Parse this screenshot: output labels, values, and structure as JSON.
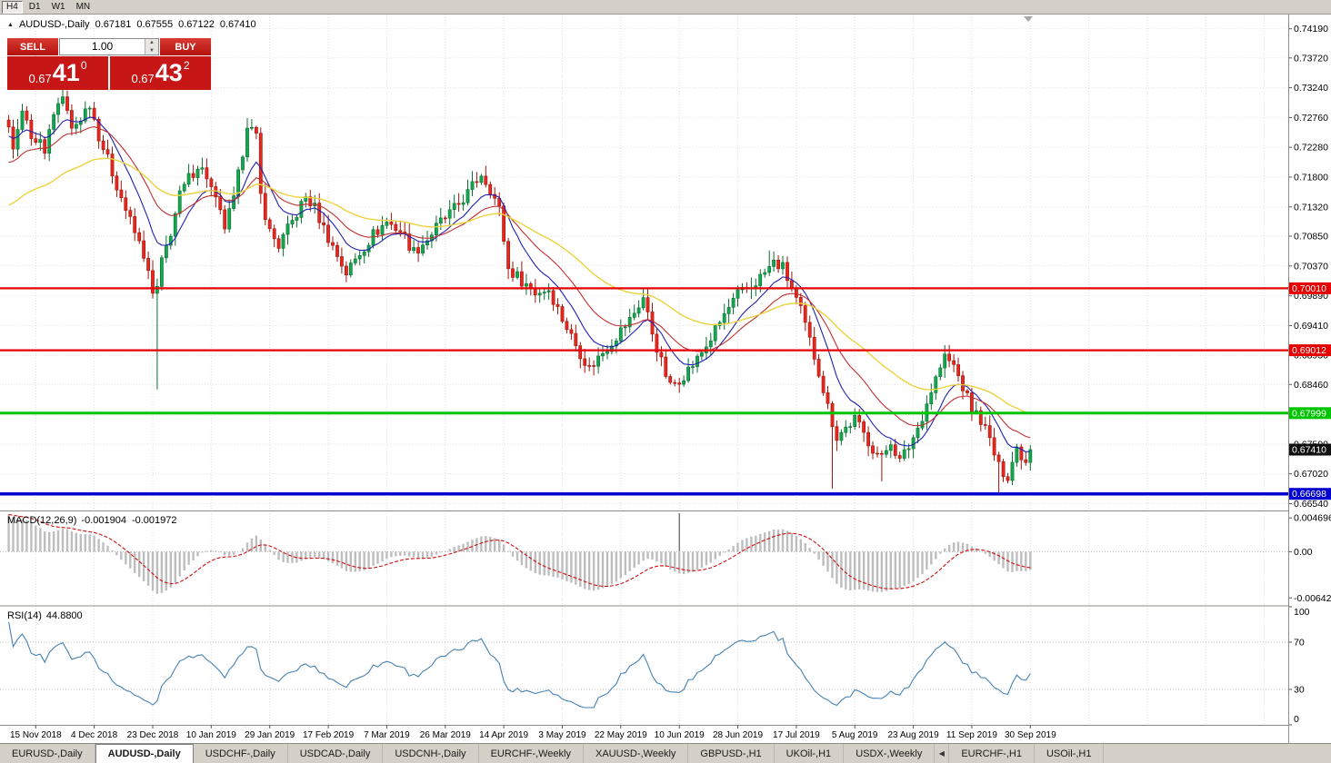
{
  "window": {
    "toolbar": {
      "timeframes": [
        "H4",
        "D1",
        "W1",
        "MN"
      ],
      "active": "H4"
    }
  },
  "symbol_info": {
    "collapse_glyph": "▲",
    "title": "AUDUSD-,Daily",
    "open": "0.67181",
    "high": "0.67555",
    "low": "0.67122",
    "close": "0.67410"
  },
  "trade_panel": {
    "sell_label": "SELL",
    "buy_label": "BUY",
    "volume": "1.00",
    "spin_up_glyph": "▲",
    "spin_down_glyph": "▼",
    "sell_price": {
      "prefix": "0.67",
      "pips": "41",
      "fraction": "0"
    },
    "buy_price": {
      "prefix": "0.67",
      "pips": "43",
      "fraction": "2"
    },
    "accent_color": "#c61616"
  },
  "price_axis": {
    "ticks": [
      "0.74190",
      "0.73720",
      "0.73240",
      "0.72760",
      "0.72280",
      "0.71800",
      "0.71320",
      "0.70850",
      "0.70370",
      "0.69890",
      "0.69410",
      "0.68930",
      "0.68460",
      "0.67980",
      "0.67500",
      "0.67020",
      "0.66540"
    ]
  },
  "hlines": [
    {
      "value": 0.7001,
      "label": "0.70010",
      "color": "#e60000",
      "width": 2.2
    },
    {
      "value": 0.69012,
      "label": "0.69012",
      "color": "#e60000",
      "width": 2.2
    },
    {
      "value": 0.67999,
      "label": "0.67999",
      "color": "#00c400",
      "width": 3
    },
    {
      "value": 0.66698,
      "label": "0.66698",
      "color": "#0000cf",
      "width": 3.5
    }
  ],
  "current_price": {
    "value": 0.6741,
    "label": "0.67410",
    "bg": "#101010"
  },
  "macd": {
    "label": "MACD(12,26,9)",
    "value_main": "-0.001904",
    "value_signal": "-0.001972",
    "ticks": [
      {
        "v": 0.004696,
        "label": "0.004696"
      },
      {
        "v": 0,
        "label": "0.00"
      },
      {
        "v": -0.006427,
        "label": "-0.006427"
      }
    ],
    "range": {
      "max": 0.0056,
      "min": -0.0074
    },
    "artifact_bar_index": 149,
    "histogram_color": "#bdbdbd",
    "signal_color": "#cf1010"
  },
  "rsi": {
    "label": "RSI(14)",
    "value": "44.8800",
    "ticks": [
      {
        "v": 100,
        "label": "100"
      },
      {
        "v": 70,
        "label": "70"
      },
      {
        "v": 30,
        "label": "30"
      },
      {
        "v": 0,
        "label": "0"
      }
    ],
    "levels": [
      70,
      30
    ],
    "line_color": "#4682b4"
  },
  "date_axis": {
    "labels": [
      "15 Nov 2018",
      "4 Dec 2018",
      "23 Dec 2018",
      "10 Jan 2019",
      "29 Jan 2019",
      "17 Feb 2019",
      "7 Mar 2019",
      "26 Mar 2019",
      "14 Apr 2019",
      "3 May 2019",
      "22 May 2019",
      "10 Jun 2019",
      "28 Jun 2019",
      "17 Jul 2019",
      "5 Aug 2019",
      "23 Aug 2019",
      "11 Sep 2019",
      "30 Sep 2019"
    ]
  },
  "tabs": {
    "items": [
      "EURUSD-,Daily",
      "AUDUSD-,Daily",
      "USDCHF-,Daily",
      "USDCAD-,Daily",
      "USDCNH-,Daily",
      "EURCHF-,Weekly",
      "XAUUSD-,Weekly",
      "GBPUSD-,H1",
      "UKOil-,H1",
      "USDX-,Weekly",
      "EURCHF-,H1",
      "USOil-,H1"
    ],
    "active_index": 1,
    "scroll_arrow_index": 10,
    "scroll_arrow_glyph": "◀"
  },
  "chart_data": {
    "type": "candlestick",
    "symbol": "AUDUSD",
    "timeframe": "Daily",
    "day_ohlc": {
      "open": 0.67181,
      "high": 0.67555,
      "low": 0.67122,
      "close": 0.6741
    },
    "price_range": [
      0.6643,
      0.7442
    ],
    "candle_count": 228,
    "prehistory_count": 32,
    "prehistory_start": 0.7005,
    "last_close": 0.6741,
    "up_color": "#12a84e",
    "down_color": "#e8281e",
    "up_stroke": "#0a6d31",
    "down_stroke": "#9e150e",
    "anchors": [
      [
        0,
        0.727
      ],
      [
        1,
        0.7228
      ],
      [
        2,
        0.7252
      ],
      [
        3,
        0.7296
      ],
      [
        4,
        0.7262
      ],
      [
        6,
        0.724
      ],
      [
        8,
        0.7226
      ],
      [
        10,
        0.7285
      ],
      [
        12,
        0.731
      ],
      [
        14,
        0.7256
      ],
      [
        16,
        0.7276
      ],
      [
        18,
        0.73
      ],
      [
        20,
        0.7248
      ],
      [
        22,
        0.7208
      ],
      [
        24,
        0.7168
      ],
      [
        26,
        0.7128
      ],
      [
        28,
        0.709
      ],
      [
        30,
        0.7056
      ],
      [
        32,
        0.699
      ],
      [
        33,
        0.7
      ],
      [
        34,
        0.7042
      ],
      [
        36,
        0.7092
      ],
      [
        38,
        0.715
      ],
      [
        40,
        0.7178
      ],
      [
        42,
        0.72
      ],
      [
        44,
        0.7182
      ],
      [
        46,
        0.714
      ],
      [
        48,
        0.71
      ],
      [
        50,
        0.7142
      ],
      [
        52,
        0.7222
      ],
      [
        53,
        0.7268
      ],
      [
        55,
        0.7242
      ],
      [
        56,
        0.715
      ],
      [
        58,
        0.7092
      ],
      [
        60,
        0.707
      ],
      [
        63,
        0.7108
      ],
      [
        66,
        0.7148
      ],
      [
        68,
        0.713
      ],
      [
        70,
        0.7098
      ],
      [
        72,
        0.7068
      ],
      [
        75,
        0.7026
      ],
      [
        78,
        0.7058
      ],
      [
        81,
        0.7088
      ],
      [
        84,
        0.7108
      ],
      [
        87,
        0.7094
      ],
      [
        90,
        0.706
      ],
      [
        93,
        0.708
      ],
      [
        96,
        0.7108
      ],
      [
        99,
        0.7128
      ],
      [
        102,
        0.7154
      ],
      [
        105,
        0.7186
      ],
      [
        107,
        0.7162
      ],
      [
        109,
        0.7128
      ],
      [
        111,
        0.7032
      ],
      [
        114,
        0.7014
      ],
      [
        117,
        0.6994
      ],
      [
        120,
        0.7
      ],
      [
        123,
        0.6952
      ],
      [
        126,
        0.691
      ],
      [
        129,
        0.6872
      ],
      [
        132,
        0.6898
      ],
      [
        135,
        0.6924
      ],
      [
        138,
        0.695
      ],
      [
        141,
        0.6986
      ],
      [
        143,
        0.693
      ],
      [
        145,
        0.6882
      ],
      [
        147,
        0.6842
      ],
      [
        150,
        0.6862
      ],
      [
        153,
        0.6886
      ],
      [
        156,
        0.692
      ],
      [
        159,
        0.6958
      ],
      [
        162,
        0.699
      ],
      [
        165,
        0.7004
      ],
      [
        168,
        0.7026
      ],
      [
        170,
        0.7042
      ],
      [
        172,
        0.7034
      ],
      [
        174,
        0.7
      ],
      [
        176,
        0.6964
      ],
      [
        178,
        0.6916
      ],
      [
        180,
        0.6868
      ],
      [
        182,
        0.681
      ],
      [
        184,
        0.6762
      ],
      [
        186,
        0.6776
      ],
      [
        188,
        0.679
      ],
      [
        190,
        0.6766
      ],
      [
        192,
        0.6744
      ],
      [
        194,
        0.6726
      ],
      [
        196,
        0.6756
      ],
      [
        198,
        0.6722
      ],
      [
        200,
        0.6746
      ],
      [
        202,
        0.6776
      ],
      [
        204,
        0.6816
      ],
      [
        206,
        0.6856
      ],
      [
        208,
        0.689
      ],
      [
        210,
        0.6876
      ],
      [
        212,
        0.6842
      ],
      [
        214,
        0.6806
      ],
      [
        216,
        0.679
      ],
      [
        218,
        0.6756
      ],
      [
        220,
        0.6712
      ],
      [
        222,
        0.67
      ],
      [
        224,
        0.6744
      ],
      [
        226,
        0.6722
      ],
      [
        227,
        0.6741
      ]
    ],
    "special_wicks": [
      {
        "i": 33,
        "low": 0.6838
      },
      {
        "i": 169,
        "high": 0.7062
      },
      {
        "i": 183,
        "low": 0.6678
      },
      {
        "i": 194,
        "low": 0.669
      },
      {
        "i": 220,
        "low": 0.667
      }
    ],
    "moving_averages": [
      {
        "period": 10,
        "color": "#2020b0"
      },
      {
        "period": 21,
        "color": "#c03030"
      },
      {
        "period": 48,
        "color": "#ecd23e"
      }
    ],
    "hline_levels": [
      0.7001,
      0.69012,
      0.67999,
      0.66698
    ],
    "indicators": {
      "macd_params": [
        12,
        26,
        9
      ],
      "macd_main": -0.001904,
      "macd_signal": -0.001972,
      "rsi_params": [
        14
      ],
      "rsi_value": 44.88
    }
  }
}
